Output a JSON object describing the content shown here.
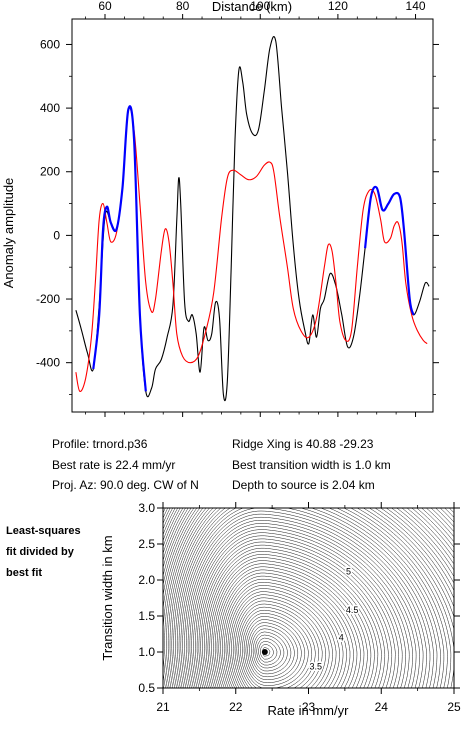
{
  "chart_data": [
    {
      "type": "line",
      "xlabel": "Distance (km)",
      "ylabel": "Anomaly amplitude",
      "xlim": [
        51.5,
        144.5
      ],
      "ylim": [
        -555,
        680
      ],
      "x_ticks": [
        60,
        80,
        100,
        120,
        140
      ],
      "y_ticks": [
        -400,
        -200,
        0,
        200,
        400,
        600
      ],
      "x_axis_position": "top",
      "grid": false,
      "series": [
        {
          "color": "#000000",
          "points": [
            [
              52.5,
              -235
            ],
            [
              54,
              -300
            ],
            [
              55.5,
              -370
            ],
            [
              57,
              -420
            ],
            [
              58.5,
              -220
            ],
            [
              60,
              60
            ],
            [
              61.5,
              40
            ],
            [
              63,
              20
            ],
            [
              64.5,
              150
            ],
            [
              66,
              395
            ],
            [
              67.5,
              300
            ],
            [
              69,
              -250
            ],
            [
              70.5,
              -490
            ],
            [
              72,
              -480
            ],
            [
              73,
              -420
            ],
            [
              74.5,
              -390
            ],
            [
              76,
              -320
            ],
            [
              77.5,
              -220
            ],
            [
              78.5,
              50
            ],
            [
              79,
              180
            ],
            [
              79.5,
              100
            ],
            [
              80.5,
              -210
            ],
            [
              81.5,
              -270
            ],
            [
              82.5,
              -250
            ],
            [
              83.5,
              -310
            ],
            [
              84.5,
              -430
            ],
            [
              85.5,
              -290
            ],
            [
              86.5,
              -330
            ],
            [
              87.5,
              -310
            ],
            [
              88.5,
              -210
            ],
            [
              89.5,
              -260
            ],
            [
              90.5,
              -500
            ],
            [
              91.5,
              -460
            ],
            [
              92.5,
              -100
            ],
            [
              93.5,
              300
            ],
            [
              94.5,
              520
            ],
            [
              95.5,
              480
            ],
            [
              96.5,
              380
            ],
            [
              98,
              320
            ],
            [
              99.5,
              330
            ],
            [
              101,
              450
            ],
            [
              102.5,
              590
            ],
            [
              104,
              610
            ],
            [
              105.5,
              400
            ],
            [
              107,
              200
            ],
            [
              108.5,
              -30
            ],
            [
              110,
              -200
            ],
            [
              111.5,
              -300
            ],
            [
              112.5,
              -340
            ],
            [
              113.5,
              -250
            ],
            [
              114.5,
              -320
            ],
            [
              115.5,
              -230
            ],
            [
              116.5,
              -200
            ],
            [
              118,
              -120
            ],
            [
              119.5,
              -160
            ],
            [
              121,
              -250
            ],
            [
              122.5,
              -350
            ],
            [
              124,
              -320
            ],
            [
              125.5,
              -200
            ],
            [
              127,
              -40
            ],
            [
              128.5,
              120
            ],
            [
              130,
              150
            ],
            [
              131.5,
              80
            ],
            [
              133,
              100
            ],
            [
              134.5,
              130
            ],
            [
              136,
              120
            ],
            [
              137,
              20
            ],
            [
              138.5,
              -200
            ],
            [
              139.5,
              -250
            ],
            [
              141,
              -210
            ],
            [
              142.5,
              -150
            ],
            [
              143.5,
              -160
            ]
          ]
        },
        {
          "color": "#ff0000",
          "points": [
            [
              52.5,
              -430
            ],
            [
              53.5,
              -490
            ],
            [
              55,
              -450
            ],
            [
              56.5,
              -320
            ],
            [
              57.5,
              -150
            ],
            [
              58.5,
              50
            ],
            [
              59.5,
              100
            ],
            [
              60.5,
              40
            ],
            [
              61.5,
              -20
            ],
            [
              63,
              10
            ],
            [
              64.5,
              150
            ],
            [
              66,
              390
            ],
            [
              67.5,
              330
            ],
            [
              69,
              100
            ],
            [
              70.5,
              -150
            ],
            [
              72,
              -240
            ],
            [
              73,
              -200
            ],
            [
              74.5,
              -50
            ],
            [
              75.5,
              20
            ],
            [
              76.5,
              -20
            ],
            [
              77.5,
              -150
            ],
            [
              78.5,
              -310
            ],
            [
              80,
              -380
            ],
            [
              82,
              -400
            ],
            [
              84,
              -380
            ],
            [
              86,
              -300
            ],
            [
              88,
              -180
            ],
            [
              90,
              50
            ],
            [
              91.5,
              180
            ],
            [
              93,
              205
            ],
            [
              95,
              190
            ],
            [
              97,
              175
            ],
            [
              99,
              185
            ],
            [
              101,
              220
            ],
            [
              102.5,
              230
            ],
            [
              103.5,
              200
            ],
            [
              105,
              60
            ],
            [
              107,
              -100
            ],
            [
              108.5,
              -230
            ],
            [
              110.5,
              -300
            ],
            [
              112.5,
              -320
            ],
            [
              114.5,
              -260
            ],
            [
              116.5,
              -100
            ],
            [
              117.5,
              -30
            ],
            [
              118.5,
              -50
            ],
            [
              119.5,
              -150
            ],
            [
              120.5,
              -270
            ],
            [
              122,
              -330
            ],
            [
              123.5,
              -300
            ],
            [
              125,
              -100
            ],
            [
              126.5,
              80
            ],
            [
              128,
              140
            ],
            [
              129.5,
              130
            ],
            [
              131,
              50
            ],
            [
              132,
              -20
            ],
            [
              133.5,
              -10
            ],
            [
              134.5,
              30
            ],
            [
              135.5,
              40
            ],
            [
              136.5,
              -20
            ],
            [
              137.5,
              -150
            ],
            [
              139,
              -250
            ],
            [
              140.5,
              -300
            ],
            [
              142,
              -330
            ],
            [
              143,
              -340
            ]
          ]
        },
        {
          "color": "#0000ff",
          "points": [
            [
              57,
              -420
            ],
            [
              58.5,
              -250
            ],
            [
              59.5,
              20
            ],
            [
              60.5,
              90
            ],
            [
              61.5,
              40
            ],
            [
              63,
              20
            ],
            [
              64.5,
              150
            ],
            [
              66,
              395
            ],
            [
              67.5,
              300
            ],
            [
              69,
              -250
            ],
            [
              70.5,
              -490
            ],
            [
              127,
              -40
            ],
            [
              128.5,
              120
            ],
            [
              130,
              150
            ],
            [
              131.5,
              80
            ],
            [
              133,
              100
            ],
            [
              134.5,
              130
            ],
            [
              136,
              120
            ],
            [
              137,
              20
            ],
            [
              138.5,
              -200
            ],
            [
              139.5,
              -250
            ]
          ],
          "segment_breaks_after_x": [
            70.5
          ]
        }
      ]
    },
    {
      "type": "heatmap",
      "xlabel": "Rate in mm/yr",
      "ylabel": "Transition width in km",
      "xlim": [
        21,
        25
      ],
      "ylim": [
        0.5,
        3.0
      ],
      "x_ticks": [
        21,
        22,
        23,
        24,
        25
      ],
      "y_ticks": [
        0.5,
        1.0,
        1.5,
        2.0,
        2.5,
        3.0
      ],
      "best_fit_point": [
        22.4,
        1.0
      ],
      "contour_labels": [
        {
          "text": "5",
          "x": 23.55,
          "y": 2.12
        },
        {
          "text": "4.5",
          "x": 23.6,
          "y": 1.58
        },
        {
          "text": "4",
          "x": 23.45,
          "y": 1.2
        },
        {
          "text": "3.5",
          "x": 23.1,
          "y": 0.8
        }
      ],
      "title_lines": [
        "Least-squares",
        "fit divided by",
        "best fit"
      ]
    }
  ],
  "info": {
    "profile": "Profile: trnord.p36",
    "best_rate": "Best rate is 22.4 mm/yr",
    "proj_az": "Proj. Az: 90.0 deg. CW of N",
    "ridge_xing": "Ridge Xing is 40.88 -29.23",
    "best_width": "Best transition width is 1.0 km",
    "depth": "Depth to source is   2.04 km"
  }
}
